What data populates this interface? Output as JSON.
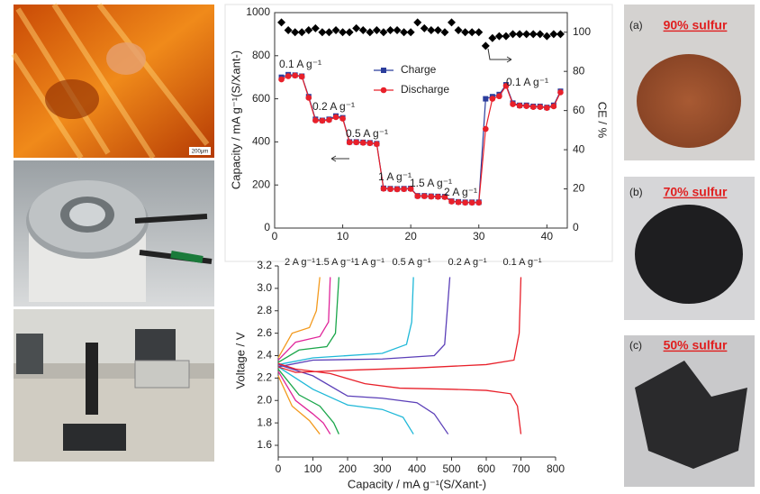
{
  "chart_data": [
    {
      "type": "line",
      "ylabel": "Capacity / mA g⁻¹(S/Xant-)",
      "y2label": "CE / %",
      "x": [
        1,
        2,
        3,
        4,
        5,
        6,
        7,
        8,
        9,
        10,
        11,
        12,
        13,
        14,
        15,
        16,
        17,
        18,
        19,
        20,
        21,
        22,
        23,
        24,
        25,
        26,
        27,
        28,
        29,
        30,
        31,
        32,
        33,
        34,
        35,
        36,
        37,
        38,
        39,
        40,
        41,
        42
      ],
      "xlim": [
        0,
        43
      ],
      "xticks": [
        0,
        10,
        20,
        30,
        40
      ],
      "ylim": [
        0,
        1000
      ],
      "yticks": [
        0,
        200,
        400,
        600,
        800,
        1000
      ],
      "y2lim": [
        0,
        110
      ],
      "y2ticks": [
        0,
        20,
        40,
        60,
        80,
        100
      ],
      "series": [
        {
          "name": "Charge",
          "color": "#2b3d9c",
          "marker": "square",
          "values": [
            700,
            712,
            710,
            705,
            610,
            505,
            500,
            505,
            520,
            512,
            400,
            400,
            398,
            396,
            392,
            185,
            183,
            182,
            183,
            184,
            150,
            150,
            148,
            147,
            146,
            125,
            122,
            120,
            120,
            120,
            600,
            610,
            620,
            665,
            580,
            570,
            570,
            565,
            565,
            560,
            570,
            635
          ]
        },
        {
          "name": "Discharge",
          "color": "#e8202a",
          "marker": "circle",
          "values": [
            690,
            705,
            708,
            703,
            605,
            500,
            498,
            502,
            515,
            508,
            398,
            398,
            396,
            394,
            390,
            183,
            181,
            180,
            181,
            182,
            148,
            148,
            146,
            145,
            144,
            123,
            120,
            118,
            118,
            118,
            460,
            600,
            612,
            660,
            575,
            568,
            566,
            562,
            562,
            558,
            565,
            630
          ]
        },
        {
          "color": "#000000",
          "marker": "diamond",
          "axis": "y2",
          "values": [
            105,
            101,
            100,
            100,
            101,
            102,
            100,
            100,
            101,
            100,
            100,
            102,
            101,
            100,
            101,
            100,
            101,
            101,
            100,
            100,
            105,
            102,
            101,
            101,
            100,
            105,
            101,
            100,
            100,
            100,
            93,
            97,
            98,
            98,
            99,
            99,
            99,
            99,
            99,
            98,
            99,
            99
          ]
        }
      ],
      "annotations": [
        "0.1 A g⁻¹",
        "0.2 A g⁻¹",
        "0.5 A g⁻¹",
        "1 A g⁻¹",
        "1.5 A g⁻¹",
        "2 A g⁻¹",
        "0.1 A g⁻¹"
      ]
    },
    {
      "type": "curves",
      "xlabel": "Capacity / mA g⁻¹(S/Xant-)",
      "ylabel": "Voltage / V",
      "xlim": [
        0,
        800
      ],
      "xticks": [
        0,
        100,
        200,
        300,
        400,
        500,
        600,
        700,
        800
      ],
      "ylim": [
        1.6,
        3.2
      ],
      "yticks": [
        1.6,
        1.8,
        {
          "value": 2,
          "label": "2.0"
        },
        2.2,
        2.4,
        2.6,
        2.8,
        {
          "value": 3,
          "label": "3.0"
        },
        3.2
      ],
      "series": [
        {
          "name": "2 A g⁻¹",
          "color": "#f39a1e",
          "curves": [
            {
              "x": [
                0,
                40,
                90,
                120
              ],
              "values": [
                2.22,
                1.95,
                1.82,
                1.7
              ]
            },
            {
              "x": [
                0,
                40,
                90,
                110,
                120
              ],
              "values": [
                2.38,
                2.6,
                2.65,
                2.8,
                3.1
              ]
            }
          ]
        },
        {
          "name": "1.5 A g⁻¹",
          "color": "#e0259a",
          "curves": [
            {
              "x": [
                0,
                50,
                100,
                130,
                150
              ],
              "values": [
                2.26,
                2.0,
                1.88,
                1.8,
                1.7
              ]
            },
            {
              "x": [
                0,
                50,
                120,
                145,
                150
              ],
              "values": [
                2.36,
                2.52,
                2.57,
                2.7,
                3.1
              ]
            }
          ]
        },
        {
          "name": "1 A g⁻¹",
          "color": "#1aa64a",
          "curves": [
            {
              "x": [
                0,
                60,
                120,
                160,
                175
              ],
              "values": [
                2.28,
                2.05,
                1.95,
                1.8,
                1.7
              ]
            },
            {
              "x": [
                0,
                60,
                140,
                165,
                175
              ],
              "values": [
                2.34,
                2.45,
                2.48,
                2.6,
                3.1
              ]
            }
          ]
        },
        {
          "name": "0.5 A g⁻¹",
          "color": "#1fb8d8",
          "curves": [
            {
              "x": [
                0,
                100,
                200,
                300,
                360,
                390
              ],
              "values": [
                2.3,
                2.1,
                1.96,
                1.92,
                1.85,
                1.7
              ]
            },
            {
              "x": [
                0,
                100,
                300,
                370,
                385,
                390
              ],
              "values": [
                2.32,
                2.38,
                2.42,
                2.5,
                2.7,
                3.1
              ]
            }
          ]
        },
        {
          "name": "0.2 A g⁻¹",
          "color": "#5b3fb8",
          "curves": [
            {
              "x": [
                0,
                100,
                200,
                300,
                400,
                450,
                490
              ],
              "values": [
                2.32,
                2.22,
                2.04,
                2.02,
                1.98,
                1.88,
                1.7
              ]
            },
            {
              "x": [
                0,
                100,
                300,
                450,
                480,
                495
              ],
              "values": [
                2.3,
                2.36,
                2.37,
                2.4,
                2.5,
                3.1
              ]
            }
          ]
        },
        {
          "name": "0.1 A g⁻¹",
          "color": "#e8202a",
          "curves": [
            {
              "x": [
                0,
                50,
                150,
                250,
                350,
                500,
                600,
                670,
                690,
                700
              ],
              "values": [
                2.33,
                2.28,
                2.24,
                2.15,
                2.11,
                2.1,
                2.09,
                2.06,
                1.95,
                1.7
              ]
            },
            {
              "x": [
                0,
                50,
                200,
                400,
                600,
                680,
                695,
                700
              ],
              "values": [
                2.3,
                2.25,
                2.27,
                2.29,
                2.32,
                2.36,
                2.6,
                3.1
              ]
            }
          ]
        }
      ]
    }
  ],
  "photos": {
    "scale_label": "200μm",
    "samples": [
      {
        "tag": "(a)",
        "label": "90% sulfur"
      },
      {
        "tag": "(b)",
        "label": "70% sulfur"
      },
      {
        "tag": "(c)",
        "label": "50% sulfur"
      }
    ]
  }
}
